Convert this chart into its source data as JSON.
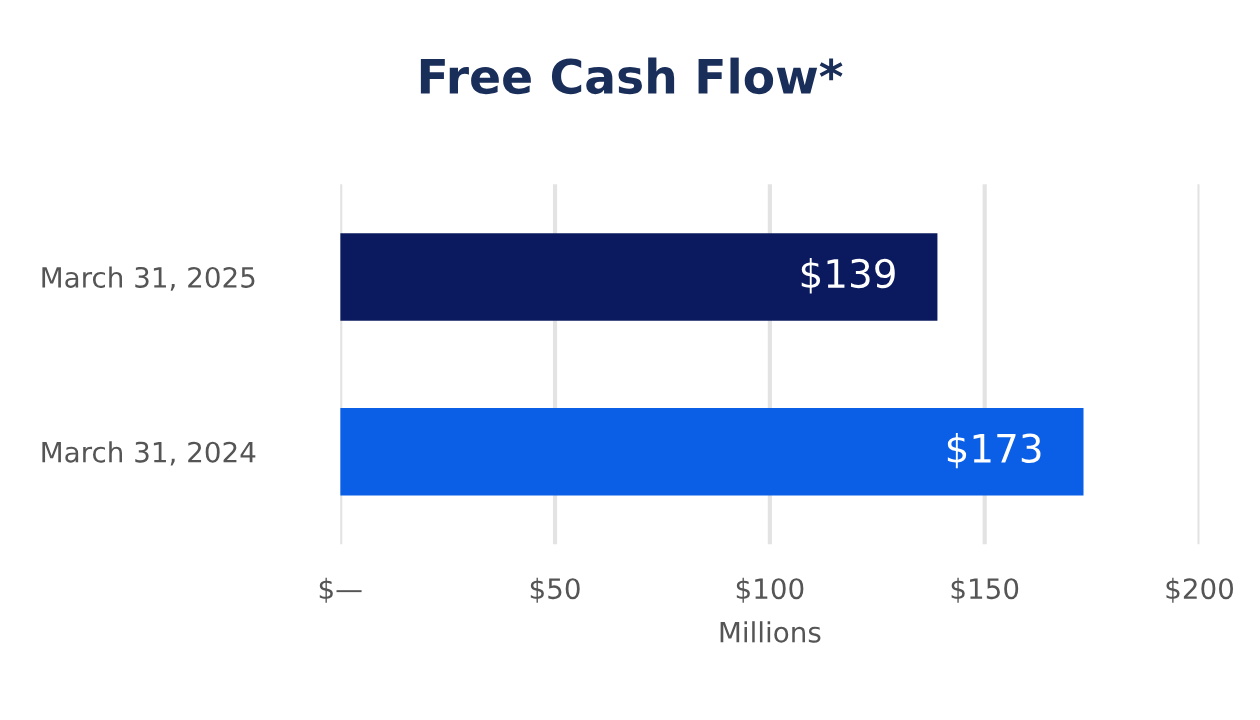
{
  "chart_data": {
    "type": "bar",
    "orientation": "horizontal",
    "title": "Free Cash Flow*",
    "xlabel": "Millions",
    "categories": [
      "March 31, 2025",
      "March 31, 2024"
    ],
    "values": [
      139,
      173
    ],
    "colors": [
      "#0b1a5e",
      "#0a5fe6"
    ],
    "value_labels": [
      "$139",
      "$173"
    ],
    "xlim": [
      0,
      200
    ],
    "xticks": [
      {
        "value": 0,
        "label": "$—"
      },
      {
        "value": 50,
        "label": "$50"
      },
      {
        "value": 100,
        "label": "$100"
      },
      {
        "value": 150,
        "label": "$150"
      },
      {
        "value": 200,
        "label": "$200"
      }
    ],
    "grid": "x"
  }
}
